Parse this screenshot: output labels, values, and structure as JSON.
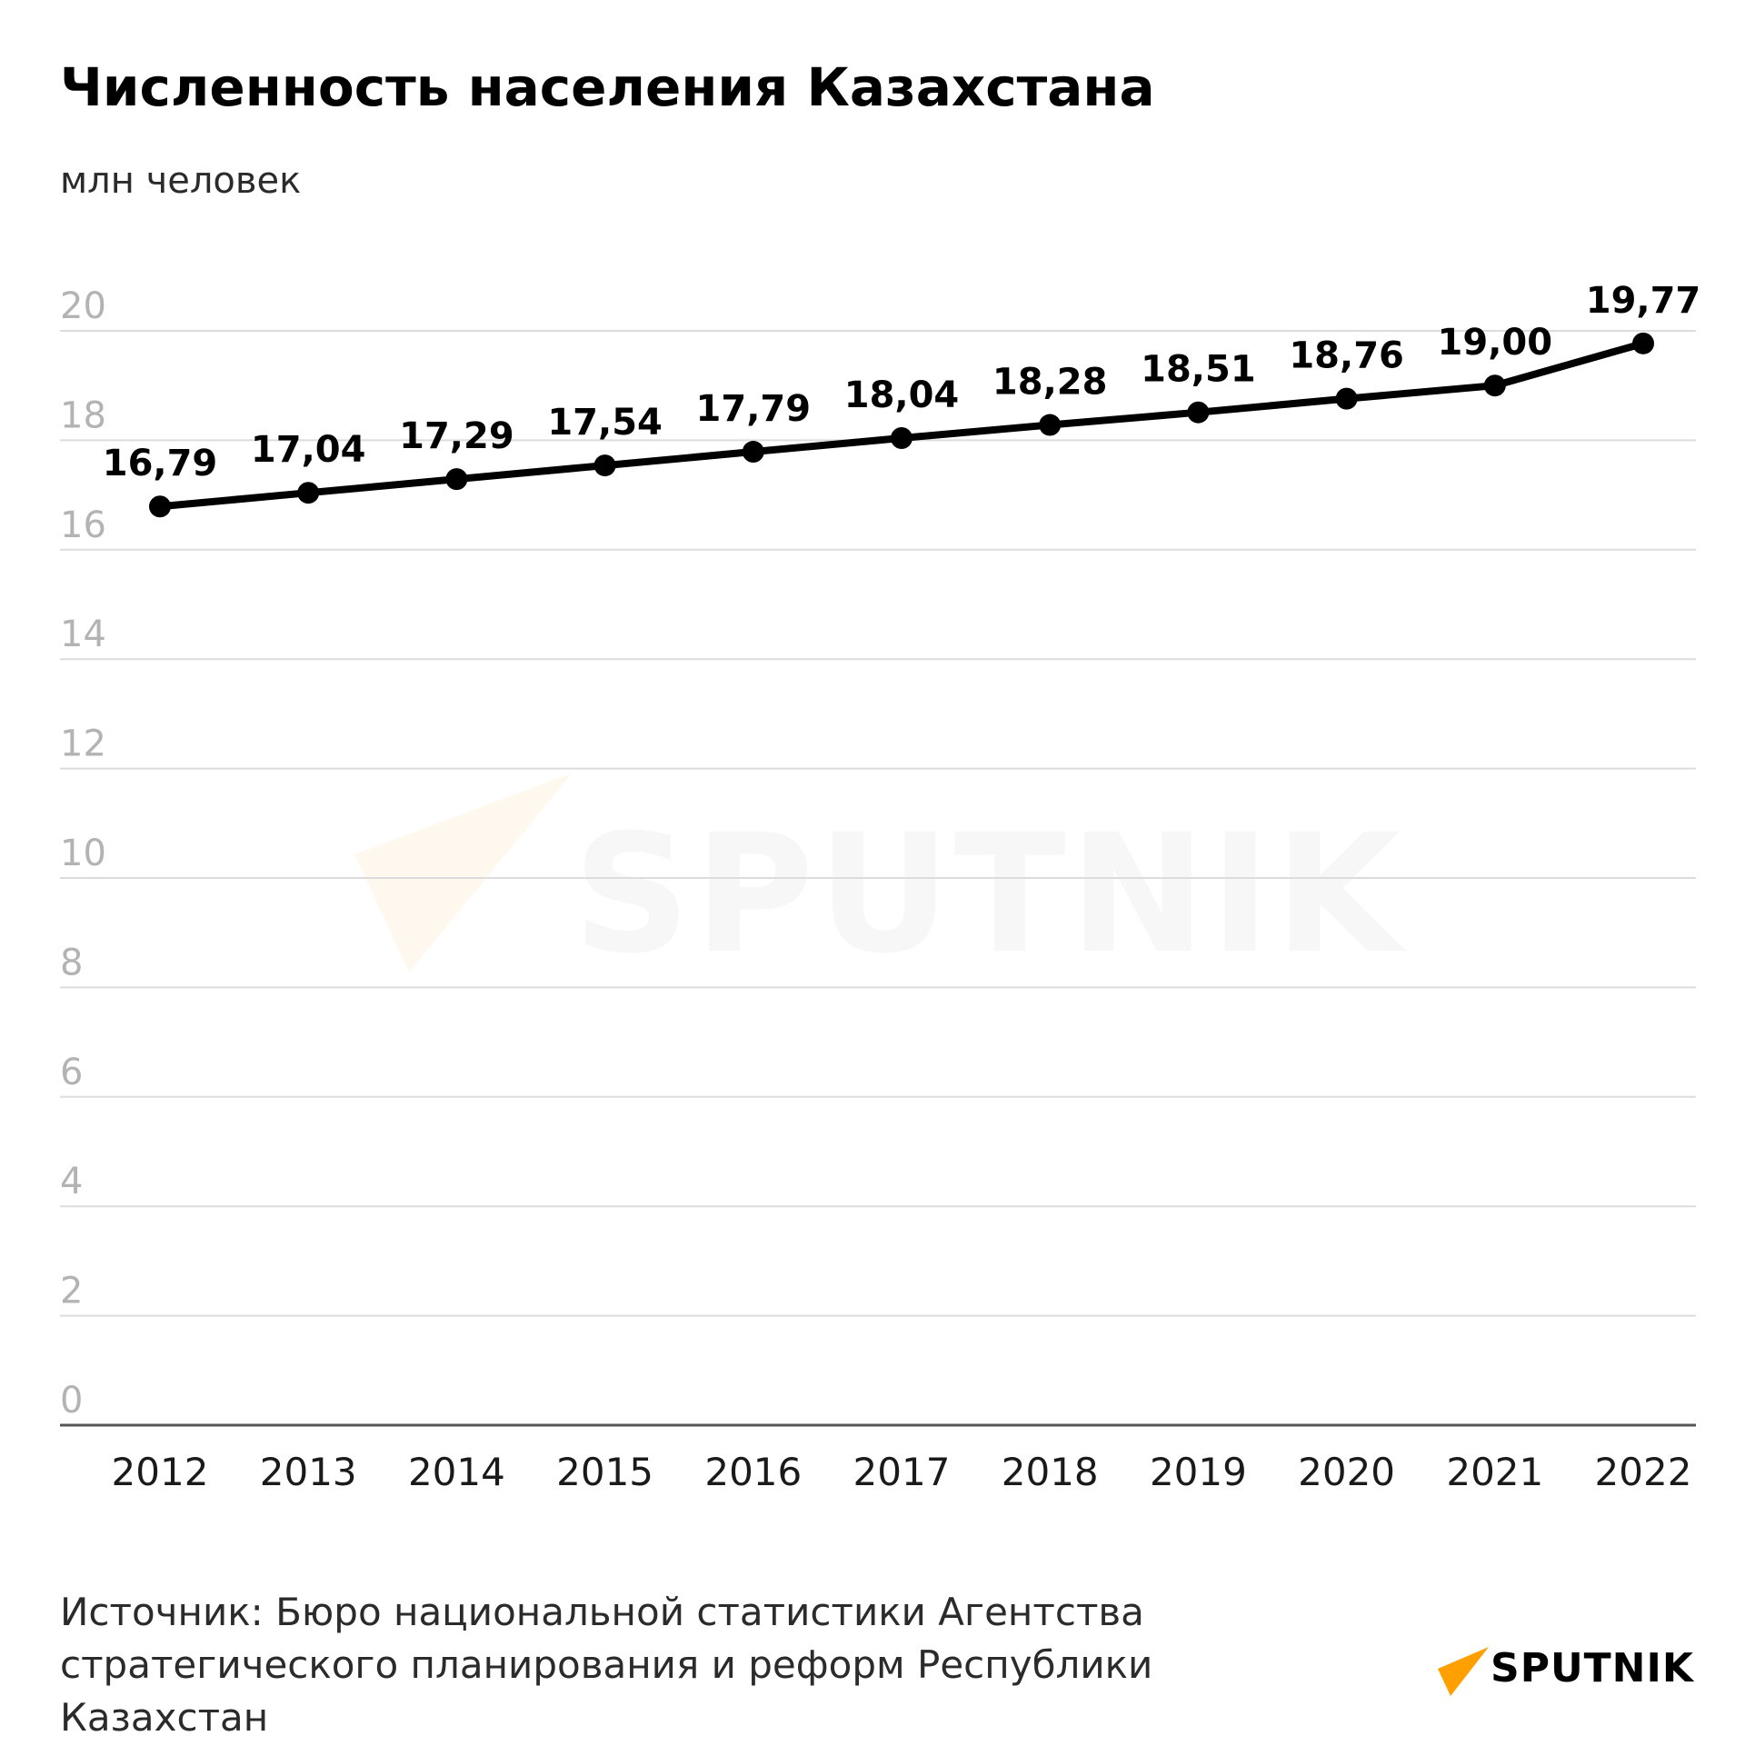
{
  "title": "Численность населения Казахстана",
  "unit_label": "млн человек",
  "source": "Источник: Бюро национальной статистики Агентства стратегического планирования и реформ Республики Казахстан",
  "logo_text": "SPUTNIK",
  "watermark_text": "SPUTNIK",
  "colors": {
    "line": "#000000",
    "grid": "#dcdcdc",
    "axis": "#555555",
    "tick_label": "#b3b3b3",
    "logo_accent": "#ffb000"
  },
  "chart_data": {
    "type": "line",
    "categories": [
      "2012",
      "2013",
      "2014",
      "2015",
      "2016",
      "2017",
      "2018",
      "2019",
      "2020",
      "2021",
      "2022"
    ],
    "values": [
      16.79,
      17.04,
      17.29,
      17.54,
      17.79,
      18.04,
      18.28,
      18.51,
      18.76,
      19.0,
      19.77
    ],
    "value_labels": [
      "16,79",
      "17,04",
      "17,29",
      "17,54",
      "17,79",
      "18,04",
      "18,28",
      "18,51",
      "18,76",
      "19,00",
      "19,77"
    ],
    "ylim": [
      0,
      20
    ],
    "yticks": [
      0,
      2,
      4,
      6,
      8,
      10,
      12,
      14,
      16,
      18,
      20
    ],
    "ylabel": "млн человек",
    "xlabel": "",
    "grid": true,
    "legend": "none"
  }
}
